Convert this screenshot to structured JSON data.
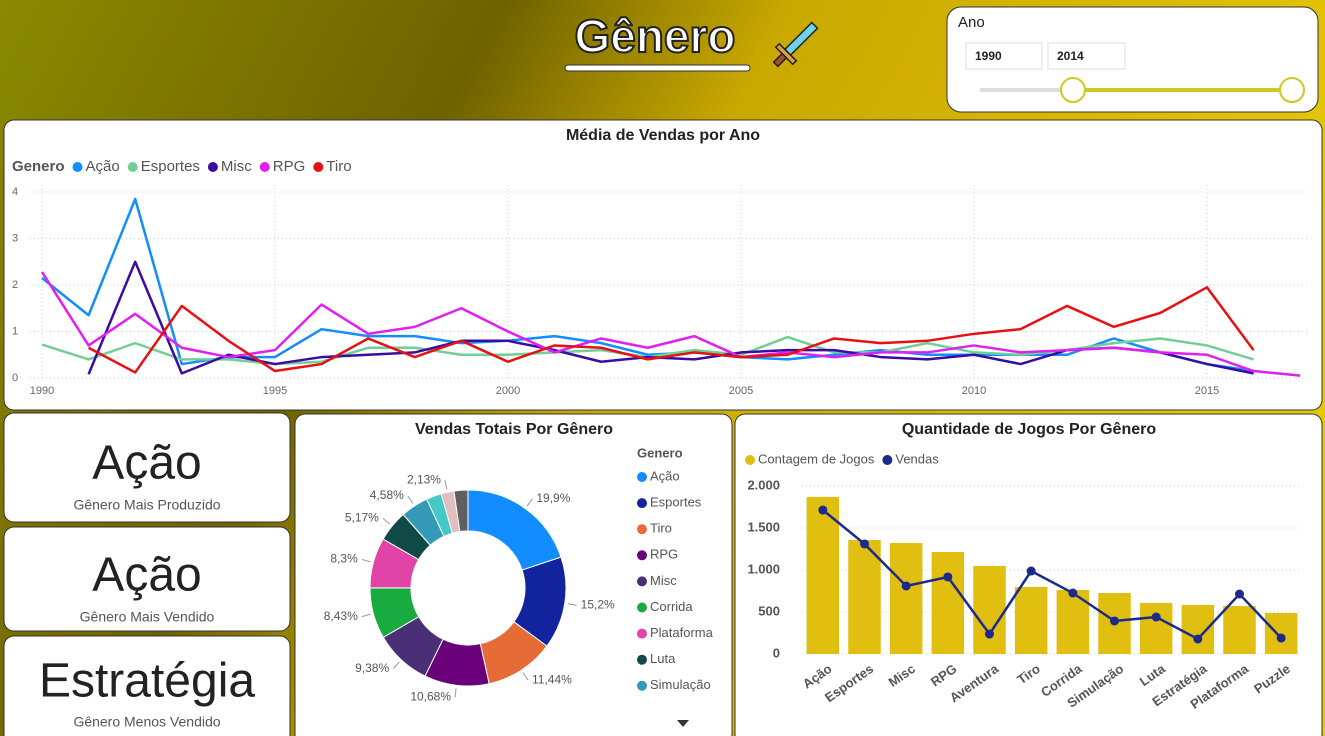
{
  "header": {
    "title": "Gênero"
  },
  "slicer": {
    "title": "Ano",
    "start": 1990,
    "end": 2014
  },
  "cards": [
    {
      "value": "Ação",
      "label": "Gênero Mais Produzido"
    },
    {
      "value": "Ação",
      "label": "Gênero Mais Vendido"
    },
    {
      "value": "Estratégia",
      "label": "Gênero Menos Vendido"
    }
  ],
  "chart_data": [
    {
      "type": "line",
      "title": "Média de Vendas por Ano",
      "legend_title": "Genero",
      "x": [
        1990,
        1991,
        1992,
        1993,
        1994,
        1995,
        1996,
        1997,
        1998,
        1999,
        2000,
        2001,
        2002,
        2003,
        2004,
        2005,
        2006,
        2007,
        2008,
        2009,
        2010,
        2011,
        2012,
        2013,
        2014,
        2015,
        2016,
        2017
      ],
      "xlim": [
        1990,
        2017.2
      ],
      "ylim": [
        0,
        4
      ],
      "xticks": [
        1990,
        1995,
        2000,
        2005,
        2010,
        2015
      ],
      "yticks": [
        0,
        1,
        2,
        3,
        4
      ],
      "grid": true,
      "series": [
        {
          "name": "Ação",
          "color": "#118dff",
          "values": [
            2.15,
            1.35,
            3.85,
            0.3,
            0.45,
            0.45,
            1.05,
            0.9,
            0.9,
            0.75,
            0.8,
            0.9,
            0.75,
            0.5,
            0.55,
            0.45,
            0.4,
            0.5,
            0.6,
            0.5,
            0.5,
            0.5,
            0.5,
            0.85,
            0.55,
            0.3,
            0.15,
            null
          ]
        },
        {
          "name": "Esportes",
          "color": "#6fcf97",
          "values": [
            0.72,
            0.4,
            0.75,
            0.4,
            0.4,
            0.3,
            0.35,
            0.65,
            0.65,
            0.5,
            0.5,
            0.55,
            0.6,
            0.45,
            0.6,
            0.5,
            0.88,
            0.55,
            0.55,
            0.75,
            0.55,
            0.5,
            0.6,
            0.75,
            0.85,
            0.7,
            0.4,
            null
          ]
        },
        {
          "name": "Misc",
          "color": "#3a0ca3",
          "values": [
            null,
            0.08,
            2.5,
            0.1,
            0.5,
            0.3,
            0.45,
            0.5,
            0.55,
            0.8,
            0.8,
            0.6,
            0.35,
            0.45,
            0.4,
            0.55,
            0.6,
            0.6,
            0.45,
            0.4,
            0.5,
            0.3,
            0.6,
            0.65,
            0.55,
            0.3,
            0.1,
            null
          ]
        },
        {
          "name": "RPG",
          "color": "#e020f0",
          "values": [
            2.28,
            0.7,
            1.38,
            0.65,
            0.45,
            0.6,
            1.58,
            0.95,
            1.1,
            1.5,
            1.0,
            0.55,
            0.85,
            0.65,
            0.9,
            0.45,
            0.55,
            0.45,
            0.55,
            0.55,
            0.7,
            0.55,
            0.6,
            0.65,
            0.55,
            0.5,
            0.15,
            0.05
          ]
        },
        {
          "name": "Tiro",
          "color": "#e81010",
          "values": [
            null,
            0.65,
            0.12,
            1.55,
            0.8,
            0.15,
            0.3,
            0.85,
            0.45,
            0.8,
            0.35,
            0.7,
            0.65,
            0.4,
            0.55,
            0.45,
            0.5,
            0.85,
            0.75,
            0.8,
            0.95,
            1.05,
            1.55,
            1.1,
            1.4,
            1.95,
            0.6,
            null
          ]
        }
      ]
    },
    {
      "type": "pie",
      "title": "Vendas Totais Por Gênero",
      "legend_title": "Genero",
      "categories": [
        "Ação",
        "Esportes",
        "Tiro",
        "RPG",
        "Misc",
        "Corrida",
        "Plataforma",
        "Luta",
        "Simulação",
        null,
        null,
        null
      ],
      "values": [
        19.9,
        15.2,
        11.44,
        10.68,
        9.38,
        8.43,
        8.3,
        5.17,
        4.58,
        2.5,
        2.13,
        2.29
      ],
      "value_labels": [
        "19,9%",
        "15,2%",
        "11,44%",
        "10,68%",
        "9,38%",
        "8,43%",
        "8,3%",
        "5,17%",
        "4,58%",
        null,
        "2,13%",
        null
      ],
      "colors": [
        "#118dff",
        "#12239e",
        "#e66c37",
        "#6b007b",
        "#4a2f78",
        "#1aab40",
        "#e044a7",
        "#0f4a47",
        "#3599b8",
        "#44c8c8",
        "#dfbfbf",
        "#606060"
      ]
    },
    {
      "type": "bar",
      "title": "Quantidade de Jogos Por Gênero",
      "categories": [
        "Ação",
        "Esportes",
        "Misc",
        "RPG",
        "Aventura",
        "Tiro",
        "Corrida",
        "Simulação",
        "Luta",
        "Estratégia",
        "Plataforma",
        "Puzzle"
      ],
      "ylim": [
        0,
        2000
      ],
      "yticks": [
        0,
        {
          "value": 500,
          "label": "500"
        },
        {
          "value": 1000,
          "label": "1.000"
        },
        {
          "value": 1500,
          "label": "1.500"
        },
        {
          "value": 2000,
          "label": "2.000"
        }
      ],
      "grid": true,
      "series": [
        {
          "name": "Contagem de Jogos",
          "type": "bar",
          "color": "#e0bf10",
          "values": [
            1870,
            1357,
            1321,
            1214,
            1048,
            798,
            762,
            726,
            607,
            583,
            571,
            488
          ]
        },
        {
          "name": "Vendas",
          "type": "line",
          "color": "#1c2a8c",
          "values": [
            1714,
            1310,
            810,
            917,
            238,
            988,
            726,
            393,
            440,
            179,
            714,
            190
          ]
        }
      ]
    }
  ]
}
